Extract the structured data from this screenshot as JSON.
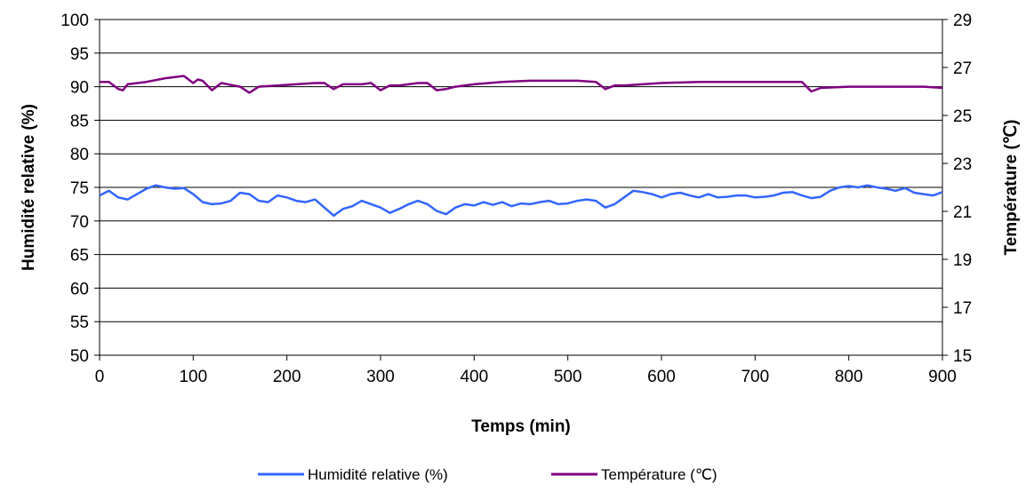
{
  "chart_data": {
    "type": "line",
    "title": "",
    "xlabel": "Temps (min)",
    "ylabel_left": "Humidité relative (%)",
    "ylabel_right": "Température (℃)",
    "xlim": [
      0,
      900
    ],
    "ylim_left": [
      50,
      100
    ],
    "ylim_right": [
      15,
      29
    ],
    "x_ticks": [
      0,
      100,
      200,
      300,
      400,
      500,
      600,
      700,
      800,
      900
    ],
    "y_ticks_left": [
      50,
      55,
      60,
      65,
      70,
      75,
      80,
      85,
      90,
      95,
      100
    ],
    "y_ticks_right": [
      15,
      17,
      19,
      21,
      23,
      25,
      27,
      29
    ],
    "grid": "horizontal",
    "legend_position": "bottom",
    "series": [
      {
        "name": "Humidité relative (%)",
        "axis": "left",
        "color": "#3366ff",
        "x": [
          0,
          10,
          20,
          30,
          40,
          50,
          60,
          70,
          80,
          90,
          100,
          110,
          120,
          130,
          140,
          150,
          160,
          170,
          180,
          190,
          200,
          210,
          220,
          230,
          240,
          250,
          260,
          270,
          280,
          290,
          300,
          310,
          320,
          330,
          340,
          350,
          360,
          370,
          380,
          390,
          400,
          410,
          420,
          430,
          440,
          450,
          460,
          470,
          480,
          490,
          500,
          510,
          520,
          530,
          540,
          550,
          560,
          570,
          580,
          590,
          600,
          610,
          620,
          630,
          640,
          650,
          660,
          670,
          680,
          690,
          700,
          710,
          720,
          730,
          740,
          750,
          760,
          770,
          780,
          790,
          800,
          810,
          820,
          830,
          840,
          850,
          860,
          870,
          880,
          890,
          900
        ],
        "values": [
          73.8,
          74.5,
          73.5,
          73.2,
          74.0,
          74.8,
          75.3,
          75.0,
          74.8,
          74.9,
          74.0,
          72.8,
          72.5,
          72.6,
          73.0,
          74.2,
          74.0,
          73.0,
          72.8,
          73.8,
          73.5,
          73.0,
          72.8,
          73.2,
          72.0,
          70.8,
          71.8,
          72.2,
          73.0,
          72.5,
          72.0,
          71.2,
          71.8,
          72.5,
          73.0,
          72.5,
          71.5,
          71.0,
          72.0,
          72.5,
          72.3,
          72.8,
          72.4,
          72.8,
          72.2,
          72.6,
          72.5,
          72.8,
          73.0,
          72.5,
          72.6,
          73.0,
          73.2,
          73.0,
          72.0,
          72.5,
          73.5,
          74.5,
          74.3,
          74.0,
          73.5,
          74.0,
          74.2,
          73.8,
          73.5,
          74.0,
          73.5,
          73.6,
          73.8,
          73.8,
          73.5,
          73.6,
          73.8,
          74.2,
          74.3,
          73.8,
          73.4,
          73.6,
          74.5,
          75.0,
          75.2,
          75.0,
          75.3,
          75.0,
          74.8,
          74.5,
          74.9,
          74.2,
          74.0,
          73.8,
          74.3
        ]
      },
      {
        "name": "Température (℃)",
        "axis": "right",
        "color": "#800080",
        "x": [
          0,
          10,
          20,
          25,
          30,
          50,
          70,
          90,
          100,
          105,
          110,
          120,
          130,
          150,
          160,
          170,
          190,
          230,
          240,
          250,
          260,
          280,
          290,
          300,
          310,
          320,
          340,
          350,
          360,
          370,
          380,
          400,
          430,
          460,
          490,
          510,
          530,
          540,
          550,
          560,
          600,
          640,
          680,
          720,
          750,
          760,
          770,
          800,
          850,
          880,
          900
        ],
        "values": [
          26.4,
          26.4,
          26.1,
          26.05,
          26.3,
          26.4,
          26.55,
          26.65,
          26.35,
          26.5,
          26.45,
          26.05,
          26.35,
          26.2,
          25.95,
          26.2,
          26.25,
          26.35,
          26.35,
          26.1,
          26.3,
          26.3,
          26.35,
          26.05,
          26.25,
          26.25,
          26.35,
          26.35,
          26.05,
          26.1,
          26.2,
          26.3,
          26.4,
          26.45,
          26.45,
          26.45,
          26.4,
          26.1,
          26.25,
          26.25,
          26.35,
          26.4,
          26.4,
          26.4,
          26.4,
          26.0,
          26.15,
          26.2,
          26.2,
          26.2,
          26.15
        ]
      }
    ]
  }
}
